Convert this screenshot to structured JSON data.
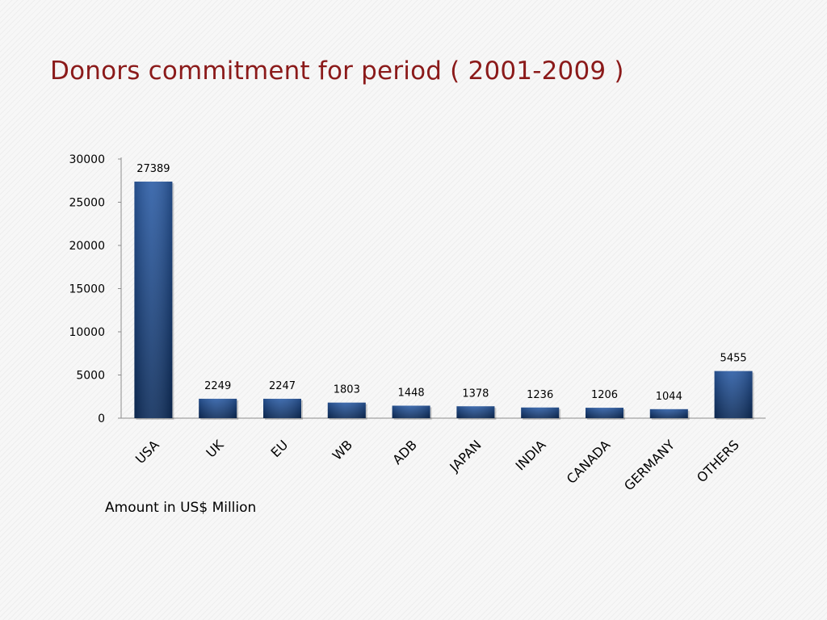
{
  "slide": {
    "title": "Donors commitment for period ( 2001-2009 )",
    "caption": "Amount in US$ Million"
  },
  "colors": {
    "title": "#8b1a1a",
    "bar_light": "#2c5da6",
    "bar_dark": "#0d2d5c"
  },
  "chart_data": {
    "type": "bar",
    "categories": [
      "USA",
      "UK",
      "EU",
      "WB",
      "ADB",
      "JAPAN",
      "INDIA",
      "CANADA",
      "GERMANY",
      "OTHERS"
    ],
    "values": [
      27389,
      2249,
      2247,
      1803,
      1448,
      1378,
      1236,
      1206,
      1044,
      5455
    ],
    "data_labels": [
      "27389",
      "2249",
      "2247",
      "1803",
      "1448",
      "1378",
      "1236",
      "1206",
      "1044",
      "5455"
    ],
    "yticks": [
      "0",
      "5000",
      "10000",
      "15000",
      "20000",
      "25000",
      "30000"
    ],
    "ylim": [
      0,
      30000
    ],
    "grid": false,
    "legend": "none"
  }
}
